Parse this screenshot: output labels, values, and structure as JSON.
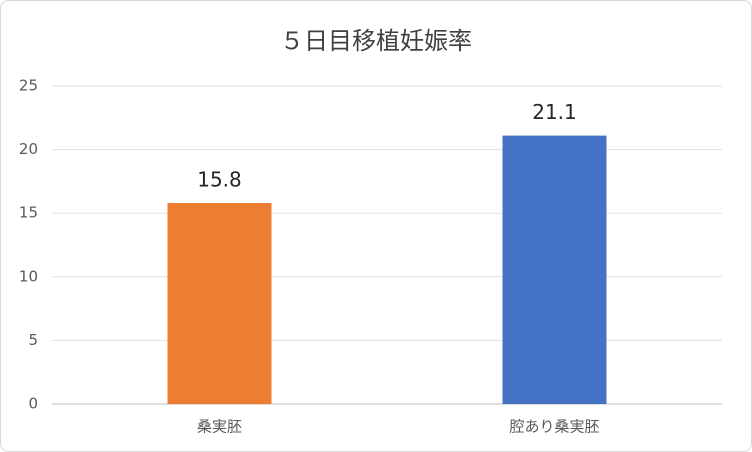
{
  "chart_data": {
    "type": "bar",
    "title": "５日目移植妊娠率",
    "categories": [
      "桑実胚",
      "腔あり桑実胚"
    ],
    "values": [
      15.8,
      21.1
    ],
    "colors": [
      "#ed7d31",
      "#4472c4"
    ],
    "ylim": [
      0,
      25
    ],
    "yticks": [
      0,
      5,
      10,
      15,
      20,
      25
    ],
    "grid": true
  }
}
